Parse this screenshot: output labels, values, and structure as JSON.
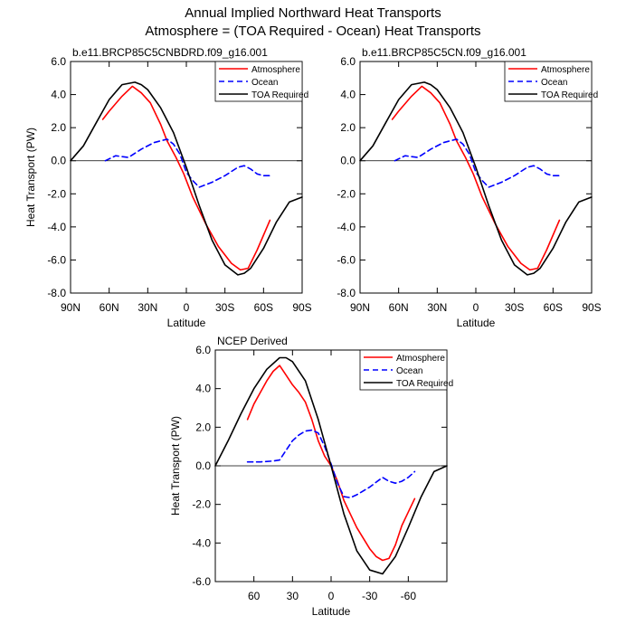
{
  "title_line1": "Annual Implied Northward Heat Transports",
  "title_line2": "Atmosphere = (TOA Required - Ocean) Heat Transports",
  "colors": {
    "Atmosphere": "#ff0000",
    "Ocean": "#0000ff",
    "TOA Required": "#000000"
  },
  "chart_data": [
    {
      "type": "line",
      "title": "b.e11.BRCP85C5CNBDRD.f09_g16.001",
      "xlabel": "Latitude",
      "ylabel": "Heat Transport (PW)",
      "xlim": [
        90,
        -90
      ],
      "ylim": [
        -8,
        6
      ],
      "xticks": [
        90,
        60,
        30,
        0,
        -30,
        -60,
        -90
      ],
      "xtick_labels": [
        "90N",
        "60N",
        "30N",
        "0",
        "30S",
        "60S",
        "90S"
      ],
      "yticks": [
        6,
        4,
        2,
        0,
        -2,
        -4,
        -6,
        -8
      ],
      "ytick_labels": [
        "6.0",
        "4.0",
        "2.0",
        "0.0",
        "-2.0",
        "-4.0",
        "-6.0",
        "-8.0"
      ],
      "legend_position": "top-right",
      "zero_line": true,
      "series": [
        {
          "name": "Atmosphere",
          "dash": "solid",
          "x": [
            65,
            60,
            50,
            42,
            35,
            28,
            20,
            15,
            8,
            2,
            -5,
            -15,
            -25,
            -35,
            -42,
            -48,
            -55,
            -60,
            -65
          ],
          "y": [
            2.5,
            3.0,
            3.9,
            4.5,
            4.1,
            3.5,
            2.2,
            1.2,
            0.2,
            -0.8,
            -2.2,
            -3.8,
            -5.2,
            -6.2,
            -6.6,
            -6.5,
            -5.4,
            -4.5,
            -3.6
          ]
        },
        {
          "name": "Ocean",
          "dash": "dashed",
          "x": [
            63,
            55,
            45,
            35,
            25,
            15,
            10,
            5,
            0,
            -5,
            -10,
            -20,
            -30,
            -40,
            -45,
            -50,
            -55,
            -60,
            -65
          ],
          "y": [
            0.0,
            0.3,
            0.2,
            0.7,
            1.1,
            1.3,
            1.0,
            0.4,
            -0.7,
            -1.2,
            -1.6,
            -1.3,
            -0.9,
            -0.4,
            -0.3,
            -0.5,
            -0.8,
            -0.9,
            -0.9
          ]
        },
        {
          "name": "TOA Required",
          "dash": "solid",
          "x": [
            90,
            80,
            70,
            60,
            50,
            40,
            35,
            30,
            20,
            10,
            0,
            -10,
            -20,
            -30,
            -40,
            -45,
            -50,
            -60,
            -70,
            -80,
            -90
          ],
          "y": [
            0.0,
            0.9,
            2.3,
            3.7,
            4.6,
            4.75,
            4.6,
            4.3,
            3.2,
            1.7,
            -0.4,
            -2.7,
            -4.8,
            -6.3,
            -6.9,
            -6.8,
            -6.5,
            -5.3,
            -3.7,
            -2.5,
            -2.2
          ]
        }
      ]
    },
    {
      "type": "line",
      "title": "b.e11.BRCP85C5CN.f09_g16.001",
      "xlabel": "Latitude",
      "ylabel": "",
      "xlim": [
        90,
        -90
      ],
      "ylim": [
        -8,
        6
      ],
      "xticks": [
        90,
        60,
        30,
        0,
        -30,
        -60,
        -90
      ],
      "xtick_labels": [
        "90N",
        "60N",
        "30N",
        "0",
        "30S",
        "60S",
        "90S"
      ],
      "yticks": [
        6,
        4,
        2,
        0,
        -2,
        -4,
        -6,
        -8
      ],
      "ytick_labels": [
        "6.0",
        "4.0",
        "2.0",
        "0.0",
        "-2.0",
        "-4.0",
        "-6.0",
        "-8.0"
      ],
      "legend_position": "top-right",
      "zero_line": true,
      "series": [
        {
          "name": "Atmosphere",
          "dash": "solid",
          "x": [
            65,
            60,
            50,
            42,
            35,
            28,
            20,
            15,
            8,
            2,
            -5,
            -15,
            -25,
            -35,
            -42,
            -48,
            -55,
            -60,
            -65
          ],
          "y": [
            2.5,
            3.0,
            3.9,
            4.5,
            4.1,
            3.5,
            2.2,
            1.2,
            0.2,
            -0.8,
            -2.2,
            -3.8,
            -5.2,
            -6.2,
            -6.6,
            -6.5,
            -5.4,
            -4.5,
            -3.6
          ]
        },
        {
          "name": "Ocean",
          "dash": "dashed",
          "x": [
            63,
            55,
            45,
            35,
            25,
            15,
            10,
            5,
            0,
            -5,
            -10,
            -20,
            -30,
            -40,
            -45,
            -50,
            -55,
            -60,
            -65
          ],
          "y": [
            0.0,
            0.3,
            0.2,
            0.7,
            1.1,
            1.3,
            1.0,
            0.4,
            -0.7,
            -1.2,
            -1.6,
            -1.3,
            -0.9,
            -0.4,
            -0.3,
            -0.5,
            -0.8,
            -0.9,
            -0.9
          ]
        },
        {
          "name": "TOA Required",
          "dash": "solid",
          "x": [
            90,
            80,
            70,
            60,
            50,
            40,
            35,
            30,
            20,
            10,
            0,
            -10,
            -20,
            -30,
            -40,
            -45,
            -50,
            -60,
            -70,
            -80,
            -90
          ],
          "y": [
            0.0,
            0.9,
            2.3,
            3.7,
            4.6,
            4.75,
            4.6,
            4.3,
            3.2,
            1.7,
            -0.4,
            -2.7,
            -4.8,
            -6.3,
            -6.9,
            -6.8,
            -6.5,
            -5.3,
            -3.7,
            -2.5,
            -2.2
          ]
        }
      ]
    },
    {
      "type": "line",
      "title": "NCEP Derived",
      "xlabel": "Latitude",
      "ylabel": "Heat Transport (PW)",
      "xlim": [
        90,
        -90
      ],
      "ylim": [
        -6,
        6
      ],
      "xticks": [
        60,
        30,
        0,
        -30,
        -60
      ],
      "xtick_labels": [
        "60",
        "30",
        "0",
        "-30",
        "-60"
      ],
      "yticks": [
        6,
        4,
        2,
        0,
        -2,
        -4,
        -6
      ],
      "ytick_labels": [
        "6.0",
        "4.0",
        "2.0",
        "0.0",
        "-2.0",
        "-4.0",
        "-6.0"
      ],
      "legend_position": "top-right",
      "zero_line": true,
      "series": [
        {
          "name": "Atmosphere",
          "dash": "solid",
          "x": [
            65,
            60,
            55,
            50,
            45,
            40,
            35,
            30,
            25,
            20,
            15,
            10,
            5,
            0,
            -5,
            -10,
            -20,
            -30,
            -35,
            -40,
            -45,
            -50,
            -55,
            -60,
            -65
          ],
          "y": [
            2.4,
            3.2,
            3.8,
            4.4,
            4.9,
            5.2,
            4.7,
            4.2,
            3.8,
            3.3,
            2.4,
            1.3,
            0.5,
            0.0,
            -0.8,
            -1.8,
            -3.2,
            -4.3,
            -4.7,
            -4.9,
            -4.8,
            -4.1,
            -3.1,
            -2.4,
            -1.7
          ]
        },
        {
          "name": "Ocean",
          "dash": "dashed",
          "x": [
            65,
            55,
            45,
            40,
            35,
            30,
            25,
            20,
            15,
            10,
            5,
            0,
            -5,
            -10,
            -15,
            -20,
            -30,
            -40,
            -45,
            -50,
            -55,
            -60,
            -65
          ],
          "y": [
            0.2,
            0.2,
            0.25,
            0.3,
            0.8,
            1.3,
            1.6,
            1.8,
            1.85,
            1.7,
            1.0,
            0.1,
            -0.9,
            -1.6,
            -1.65,
            -1.5,
            -1.1,
            -0.6,
            -0.8,
            -0.9,
            -0.8,
            -0.6,
            -0.3
          ]
        },
        {
          "name": "TOA Required",
          "dash": "solid",
          "x": [
            90,
            80,
            70,
            60,
            50,
            40,
            35,
            30,
            20,
            10,
            0,
            -10,
            -20,
            -30,
            -40,
            -50,
            -60,
            -70,
            -80,
            -90
          ],
          "y": [
            0.0,
            1.3,
            2.7,
            4.0,
            5.0,
            5.6,
            5.6,
            5.4,
            4.4,
            2.4,
            0.0,
            -2.5,
            -4.4,
            -5.4,
            -5.6,
            -4.7,
            -3.2,
            -1.6,
            -0.3,
            0.0
          ]
        }
      ]
    }
  ]
}
